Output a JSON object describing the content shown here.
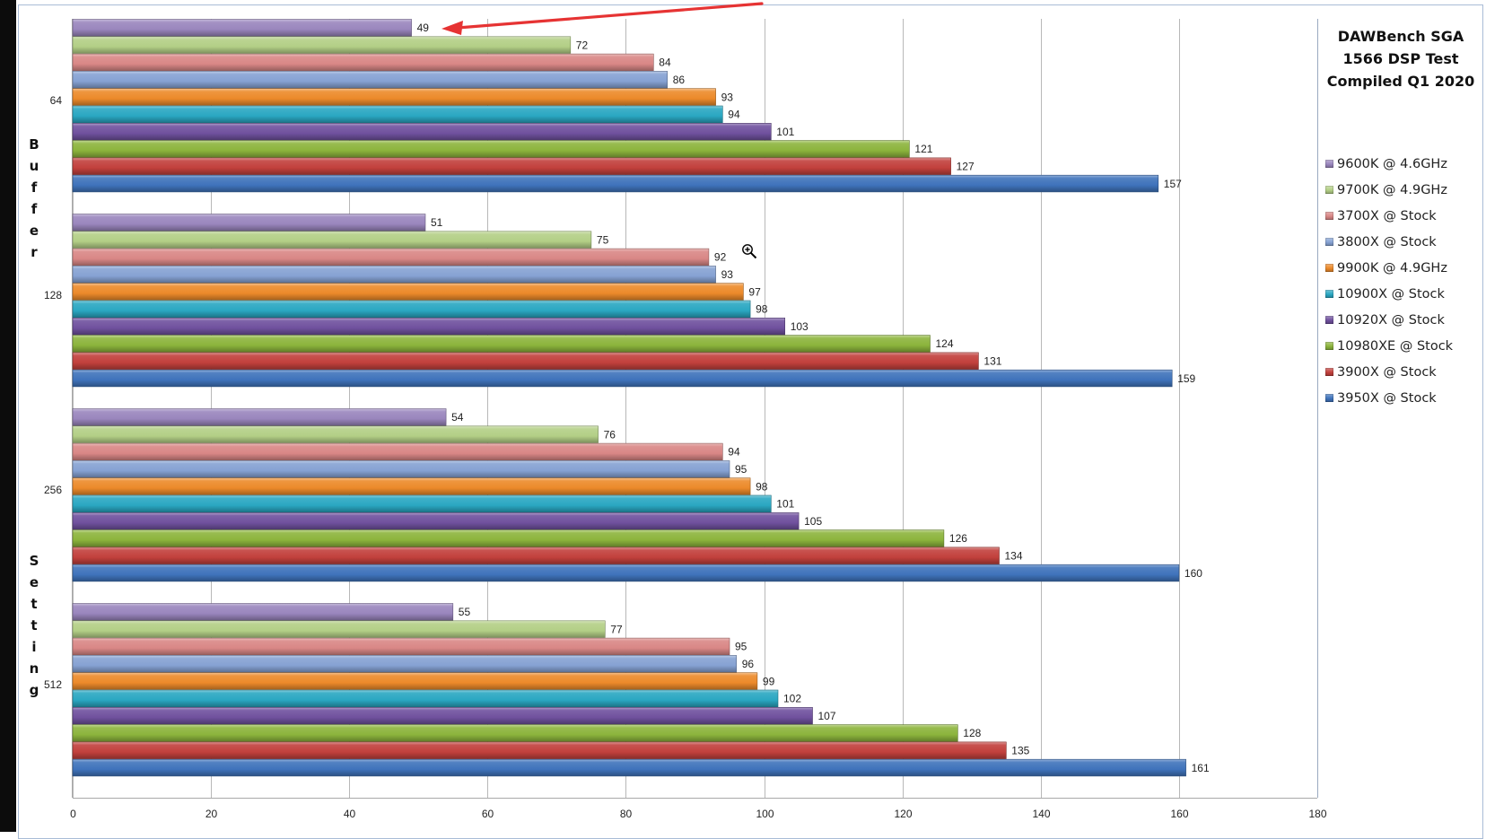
{
  "chart_data": {
    "type": "bar",
    "orientation": "horizontal",
    "title": [
      "DAWBench SGA",
      "1566 DSP Test",
      "Compiled Q1 2020"
    ],
    "ylabel": "Buffer Setting",
    "xlabel": "",
    "xlim": [
      0,
      180
    ],
    "x_ticks": [
      "0",
      "20",
      "40",
      "60",
      "80",
      "100",
      "120",
      "140",
      "160",
      "180"
    ],
    "grid": true,
    "legend_position": "right",
    "categories": [
      "64",
      "128",
      "256",
      "512"
    ],
    "series": [
      {
        "name": "9600K @ 4.6GHz",
        "color": "#9a86bd",
        "values": [
          49,
          51,
          54,
          55
        ]
      },
      {
        "name": "9700K @ 4.9GHz",
        "color": "#b3cf86",
        "values": [
          72,
          75,
          76,
          77
        ]
      },
      {
        "name": "3700X @ Stock",
        "color": "#d98786",
        "values": [
          84,
          92,
          94,
          95
        ]
      },
      {
        "name": "3800X @ Stock",
        "color": "#86a2d3",
        "values": [
          86,
          93,
          95,
          96
        ]
      },
      {
        "name": "9900K @ 4.9GHz",
        "color": "#ec8a2a",
        "values": [
          93,
          97,
          98,
          99
        ]
      },
      {
        "name": "10900X @ Stock",
        "color": "#2aa7c2",
        "values": [
          94,
          98,
          101,
          102
        ]
      },
      {
        "name": "10920X @ Stock",
        "color": "#70519e",
        "values": [
          101,
          103,
          105,
          107
        ]
      },
      {
        "name": "10980XE @ Stock",
        "color": "#8cb43c",
        "values": [
          121,
          124,
          126,
          128
        ]
      },
      {
        "name": "3900X @ Stock",
        "color": "#c2403c",
        "values": [
          127,
          131,
          134,
          135
        ]
      },
      {
        "name": "3950X @ Stock",
        "color": "#3f73bb",
        "values": [
          157,
          159,
          160,
          161
        ]
      }
    ],
    "annotations": [
      {
        "type": "arrow",
        "color": "#e63333",
        "points_to": "9600K @ 4.6GHz, 64 buffer"
      }
    ]
  },
  "colors": {
    "arrow": "#e63333",
    "gridline": "#b8b8b8",
    "frame": "#a9bcd6"
  },
  "cursor": {
    "icon": "zoom-in-cursor-icon"
  }
}
